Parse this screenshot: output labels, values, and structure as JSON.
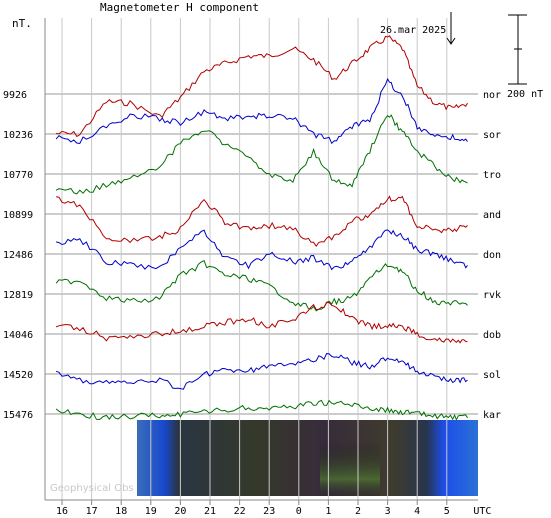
{
  "header": {
    "ylabel_unit": "nT.",
    "title": "Magnetometer H component",
    "date_label": "26.mar 2025",
    "scale_label": "200 nT",
    "watermark": "Geophysical Obs"
  },
  "chart_data": {
    "type": "line",
    "title": "Magnetometer H component",
    "ylabel": "nT.",
    "xlabel": "UTC",
    "x_ticks": [
      "16",
      "17",
      "18",
      "19",
      "20",
      "21",
      "22",
      "23",
      "0",
      "1",
      "2",
      "3",
      "4",
      "5",
      "UTC"
    ],
    "scale_bar_nT": 200,
    "grid": true,
    "stations": [
      {
        "code": "nor",
        "baseline": "9926",
        "color": "#b00000"
      },
      {
        "code": "sor",
        "baseline": "10236",
        "color": "#0000c8"
      },
      {
        "code": "tro",
        "baseline": "10770",
        "color": "#007000"
      },
      {
        "code": "and",
        "baseline": "10899",
        "color": "#b00000"
      },
      {
        "code": "don",
        "baseline": "12486",
        "color": "#0000c8"
      },
      {
        "code": "rvk",
        "baseline": "12819",
        "color": "#007000"
      },
      {
        "code": "dob",
        "baseline": "14046",
        "color": "#b00000"
      },
      {
        "code": "sol",
        "baseline": "14520",
        "color": "#0000c8"
      },
      {
        "code": "kar",
        "baseline": "15476",
        "color": "#007000"
      }
    ],
    "series_keypoints": [
      {
        "station": "nor",
        "points": [
          [
            15.8,
            -52
          ],
          [
            16.6,
            -53
          ],
          [
            17.5,
            -10
          ],
          [
            18.3,
            -12
          ],
          [
            19.3,
            -30
          ],
          [
            20.0,
            -5
          ],
          [
            20.8,
            30
          ],
          [
            21.5,
            40
          ],
          [
            22.3,
            50
          ],
          [
            23.0,
            50
          ],
          [
            23.8,
            60
          ],
          [
            0.5,
            45
          ],
          [
            1.2,
            20
          ],
          [
            1.8,
            40
          ],
          [
            2.4,
            60
          ],
          [
            3.0,
            75
          ],
          [
            3.5,
            60
          ],
          [
            4.0,
            10
          ],
          [
            4.6,
            -12
          ],
          [
            5.2,
            -20
          ],
          [
            5.7,
            -12
          ]
        ]
      },
      {
        "station": "sor",
        "points": [
          [
            15.8,
            -5
          ],
          [
            16.6,
            -10
          ],
          [
            17.5,
            10
          ],
          [
            18.3,
            25
          ],
          [
            19.3,
            20
          ],
          [
            20.0,
            15
          ],
          [
            20.8,
            30
          ],
          [
            21.5,
            20
          ],
          [
            22.3,
            22
          ],
          [
            23.0,
            25
          ],
          [
            23.8,
            20
          ],
          [
            0.5,
            0
          ],
          [
            1.2,
            -10
          ],
          [
            1.8,
            10
          ],
          [
            2.4,
            20
          ],
          [
            3.0,
            70
          ],
          [
            3.5,
            50
          ],
          [
            4.0,
            10
          ],
          [
            4.6,
            -2
          ],
          [
            5.2,
            -5
          ],
          [
            5.7,
            -10
          ]
        ]
      },
      {
        "station": "tro",
        "points": [
          [
            15.8,
            -18
          ],
          [
            16.6,
            -25
          ],
          [
            17.5,
            -15
          ],
          [
            18.3,
            -5
          ],
          [
            19.3,
            10
          ],
          [
            20.0,
            40
          ],
          [
            20.8,
            60
          ],
          [
            21.5,
            40
          ],
          [
            22.3,
            20
          ],
          [
            23.0,
            0
          ],
          [
            23.8,
            -10
          ],
          [
            0.5,
            30
          ],
          [
            1.2,
            -10
          ],
          [
            1.8,
            -15
          ],
          [
            2.4,
            30
          ],
          [
            3.0,
            80
          ],
          [
            3.5,
            55
          ],
          [
            4.0,
            30
          ],
          [
            4.6,
            10
          ],
          [
            5.2,
            -5
          ],
          [
            5.7,
            -12
          ]
        ]
      },
      {
        "station": "and",
        "points": [
          [
            15.8,
            20
          ],
          [
            16.6,
            10
          ],
          [
            17.5,
            -30
          ],
          [
            18.3,
            -35
          ],
          [
            19.3,
            -30
          ],
          [
            20.0,
            -20
          ],
          [
            20.8,
            20
          ],
          [
            21.5,
            -10
          ],
          [
            22.3,
            -20
          ],
          [
            23.0,
            -15
          ],
          [
            23.8,
            -20
          ],
          [
            0.5,
            -40
          ],
          [
            1.2,
            -30
          ],
          [
            1.8,
            -10
          ],
          [
            2.4,
            0
          ],
          [
            3.0,
            20
          ],
          [
            3.5,
            20
          ],
          [
            4.0,
            -15
          ],
          [
            4.6,
            -20
          ],
          [
            5.2,
            -22
          ],
          [
            5.7,
            -15
          ]
        ]
      },
      {
        "station": "don",
        "points": [
          [
            15.8,
            15
          ],
          [
            16.6,
            20
          ],
          [
            17.5,
            -10
          ],
          [
            18.3,
            -15
          ],
          [
            19.3,
            -20
          ],
          [
            20.0,
            10
          ],
          [
            20.8,
            30
          ],
          [
            21.5,
            -5
          ],
          [
            22.3,
            -15
          ],
          [
            23.0,
            0
          ],
          [
            23.8,
            -10
          ],
          [
            0.5,
            -5
          ],
          [
            1.2,
            -20
          ],
          [
            1.8,
            -10
          ],
          [
            2.4,
            10
          ],
          [
            3.0,
            30
          ],
          [
            3.5,
            25
          ],
          [
            4.0,
            5
          ],
          [
            4.6,
            0
          ],
          [
            5.2,
            -10
          ],
          [
            5.7,
            -15
          ]
        ]
      },
      {
        "station": "rvk",
        "points": [
          [
            15.8,
            15
          ],
          [
            16.6,
            18
          ],
          [
            17.5,
            -5
          ],
          [
            18.3,
            -10
          ],
          [
            19.3,
            -5
          ],
          [
            20.0,
            25
          ],
          [
            20.8,
            40
          ],
          [
            21.5,
            25
          ],
          [
            22.3,
            20
          ],
          [
            23.0,
            10
          ],
          [
            23.8,
            -10
          ],
          [
            0.5,
            -20
          ],
          [
            1.2,
            -10
          ],
          [
            1.8,
            -5
          ],
          [
            2.4,
            20
          ],
          [
            3.0,
            40
          ],
          [
            3.5,
            30
          ],
          [
            4.0,
            5
          ],
          [
            4.6,
            -10
          ],
          [
            5.2,
            -12
          ],
          [
            5.7,
            -15
          ]
        ]
      },
      {
        "station": "dob",
        "points": [
          [
            15.8,
            12
          ],
          [
            16.6,
            8
          ],
          [
            17.5,
            -5
          ],
          [
            18.3,
            -2
          ],
          [
            19.3,
            0
          ],
          [
            20.0,
            5
          ],
          [
            20.8,
            10
          ],
          [
            21.5,
            15
          ],
          [
            22.3,
            20
          ],
          [
            23.0,
            10
          ],
          [
            23.8,
            20
          ],
          [
            0.5,
            35
          ],
          [
            1.2,
            40
          ],
          [
            1.8,
            20
          ],
          [
            2.4,
            10
          ],
          [
            3.0,
            10
          ],
          [
            3.5,
            10
          ],
          [
            4.0,
            0
          ],
          [
            4.6,
            -8
          ],
          [
            5.2,
            -10
          ],
          [
            5.7,
            -10
          ]
        ]
      },
      {
        "station": "sol",
        "points": [
          [
            15.8,
            0
          ],
          [
            16.6,
            -8
          ],
          [
            17.5,
            -12
          ],
          [
            18.3,
            -10
          ],
          [
            19.3,
            -8
          ],
          [
            20.0,
            -20
          ],
          [
            20.8,
            0
          ],
          [
            21.5,
            5
          ],
          [
            22.3,
            5
          ],
          [
            23.0,
            10
          ],
          [
            23.8,
            15
          ],
          [
            0.5,
            20
          ],
          [
            1.2,
            25
          ],
          [
            1.8,
            15
          ],
          [
            2.4,
            10
          ],
          [
            3.0,
            20
          ],
          [
            3.5,
            15
          ],
          [
            4.0,
            5
          ],
          [
            4.6,
            -5
          ],
          [
            5.2,
            -8
          ],
          [
            5.7,
            -8
          ]
        ]
      },
      {
        "station": "kar",
        "points": [
          [
            15.8,
            5
          ],
          [
            16.6,
            0
          ],
          [
            17.5,
            -5
          ],
          [
            18.3,
            -3
          ],
          [
            19.3,
            -2
          ],
          [
            20.0,
            0
          ],
          [
            20.8,
            2
          ],
          [
            21.5,
            5
          ],
          [
            22.3,
            8
          ],
          [
            23.0,
            8
          ],
          [
            23.8,
            10
          ],
          [
            0.5,
            15
          ],
          [
            1.2,
            15
          ],
          [
            1.8,
            12
          ],
          [
            2.4,
            8
          ],
          [
            3.0,
            5
          ],
          [
            3.5,
            3
          ],
          [
            4.0,
            0
          ],
          [
            4.6,
            -3
          ],
          [
            5.2,
            -5
          ],
          [
            5.7,
            -5
          ]
        ]
      }
    ]
  }
}
